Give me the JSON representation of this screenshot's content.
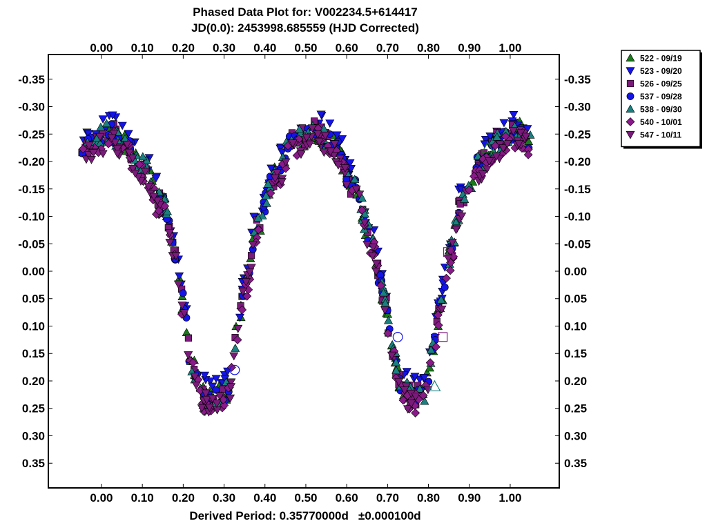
{
  "chart_data": {
    "type": "scatter",
    "title": "Phased Data Plot for: V002234.5+614417",
    "subtitle": "JD(0.0): 2453998.685559 (HJD Corrected)",
    "xlabel": "Derived Period: 0.35770000d   ±0.000100d",
    "ylabel": "",
    "xlim": [
      -0.13,
      1.12
    ],
    "ylim": [
      0.395,
      -0.395
    ],
    "x_ticks": [
      "0.00",
      "0.10",
      "0.20",
      "0.30",
      "0.40",
      "0.50",
      "0.60",
      "0.70",
      "0.80",
      "0.90",
      "1.00"
    ],
    "x_tick_values": [
      0,
      0.1,
      0.2,
      0.3,
      0.4,
      0.5,
      0.6,
      0.7,
      0.8,
      0.9,
      1.0
    ],
    "y_ticks": [
      "-0.35",
      "-0.30",
      "-0.25",
      "-0.20",
      "-0.15",
      "-0.10",
      "-0.05",
      "0.00",
      "0.05",
      "0.10",
      "0.15",
      "0.20",
      "0.25",
      "0.30",
      "0.35"
    ],
    "y_tick_values": [
      -0.35,
      -0.3,
      -0.25,
      -0.2,
      -0.15,
      -0.1,
      -0.05,
      0,
      0.05,
      0.1,
      0.15,
      0.2,
      0.25,
      0.3,
      0.35
    ],
    "y_inverted": true,
    "grid": false,
    "legend_position": "outside-top-right",
    "light_curve_model": {
      "description_source": "visible shape",
      "phase_range": [
        -0.05,
        1.05
      ],
      "samples": [
        [
          -0.05,
          -0.215
        ],
        [
          0.0,
          -0.245
        ],
        [
          0.02,
          -0.255
        ],
        [
          0.05,
          -0.235
        ],
        [
          0.1,
          -0.19
        ],
        [
          0.15,
          -0.12
        ],
        [
          0.18,
          -0.04
        ],
        [
          0.2,
          0.06
        ],
        [
          0.22,
          0.17
        ],
        [
          0.25,
          0.225
        ],
        [
          0.28,
          0.23
        ],
        [
          0.31,
          0.22
        ],
        [
          0.33,
          0.12
        ],
        [
          0.35,
          0.03
        ],
        [
          0.38,
          -0.08
        ],
        [
          0.42,
          -0.17
        ],
        [
          0.47,
          -0.235
        ],
        [
          0.52,
          -0.255
        ],
        [
          0.57,
          -0.23
        ],
        [
          0.62,
          -0.15
        ],
        [
          0.66,
          -0.06
        ],
        [
          0.69,
          0.04
        ],
        [
          0.71,
          0.14
        ],
        [
          0.73,
          0.2
        ],
        [
          0.76,
          0.23
        ],
        [
          0.79,
          0.22
        ],
        [
          0.81,
          0.15
        ],
        [
          0.83,
          0.06
        ],
        [
          0.85,
          -0.03
        ],
        [
          0.88,
          -0.12
        ],
        [
          0.92,
          -0.19
        ],
        [
          0.97,
          -0.235
        ],
        [
          1.02,
          -0.255
        ],
        [
          1.05,
          -0.235
        ]
      ],
      "scatter_amplitude": 0.02
    },
    "series": [
      {
        "name": "522 - 09/19",
        "marker": "triangle-up",
        "color": "#1a7a1a"
      },
      {
        "name": "523 - 09/20",
        "marker": "triangle-down",
        "color": "#1414e6"
      },
      {
        "name": "526 - 09/25",
        "marker": "square",
        "color": "#7a1a7a"
      },
      {
        "name": "537 - 09/28",
        "marker": "circle",
        "color": "#1414e6"
      },
      {
        "name": "538 - 09/30",
        "marker": "triangle-up",
        "color": "#1a8080"
      },
      {
        "name": "540 - 10/01",
        "marker": "diamond",
        "color": "#8a1a8a"
      },
      {
        "name": "547 - 10/11",
        "marker": "triangle-down",
        "color": "#7a1a7a"
      }
    ]
  }
}
